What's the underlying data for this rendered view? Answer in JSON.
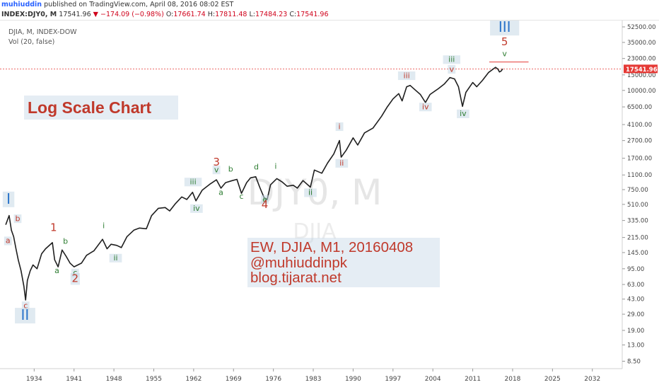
{
  "header": {
    "author": "muhiuddin",
    "published": "published on TradingView.com, April 08, 2016 08:02 EST"
  },
  "ohlc": {
    "symbol": "INDEX:DJY0, M",
    "last": "17541.96",
    "change_arrow": "▼",
    "change": "−174.09 (−0.98%)",
    "o_label": "O:",
    "o": "17661.74",
    "h_label": "H:",
    "h": "17811.48",
    "l_label": "L:",
    "l": "17484.23",
    "c_label": "C:",
    "c": "17541.96"
  },
  "legend": {
    "series": "DJIA, M, INDEX-DOW",
    "volume": "Vol (20, false)"
  },
  "watermark": {
    "main": "DJY0, M",
    "sub": "DJIA"
  },
  "annotations": {
    "title_box": "Log Scale Chart",
    "info_lines": [
      "EW, DJIA, M1, 20160408",
      "@muhiuddinpk",
      "blog.tijarat.net"
    ]
  },
  "colors": {
    "price_line": "#1f1f1f",
    "label_red": "#c0392b",
    "label_green": "#2e7d32",
    "label_blue": "#2a73c9",
    "last_price_bg": "#e53935",
    "hline": "#e53935"
  },
  "chart_data": {
    "type": "line",
    "scale": "log",
    "title": "",
    "xlabel": "",
    "ylabel": "",
    "xlim": [
      1928,
      2037
    ],
    "ylim": [
      7,
      62000
    ],
    "x_ticks": [
      1934,
      1941,
      1948,
      1955,
      1962,
      1969,
      1976,
      1983,
      1990,
      1997,
      2004,
      2011,
      2018,
      2025,
      2032
    ],
    "y_ticks": [
      8.5,
      13,
      19,
      29,
      43,
      63,
      95,
      145,
      215,
      335,
      510,
      750,
      1100,
      1700,
      2700,
      4100,
      6500,
      10000,
      15000,
      23000,
      35000,
      52500
    ],
    "y_tick_labels": [
      "8.50",
      "13.00",
      "19.00",
      "29.00",
      "43.00",
      "63.00",
      "95.00",
      "145.00",
      "215.00",
      "335.00",
      "510.00",
      "750.00",
      "1100.00",
      "1700.00",
      "2700.00",
      "4100.00",
      "6500.00",
      "10000.00",
      "15000.00",
      "23000.00",
      "35000.00",
      "52500.00"
    ],
    "last_price": {
      "value": 17541.96,
      "label": "17541.96"
    },
    "series": [
      {
        "x": [
          1929.0,
          1929.6,
          1930.0,
          1930.4,
          1930.8,
          1931.2,
          1931.7,
          1932.2,
          1932.5,
          1932.8,
          1933.3,
          1933.8,
          1934.5,
          1935.3,
          1936.0,
          1937.2,
          1937.6,
          1938.2,
          1938.9,
          1939.6,
          1940.3,
          1941.0,
          1942.3,
          1943.2,
          1944.5,
          1946.0,
          1946.8,
          1947.5,
          1948.5,
          1949.3,
          1950.3,
          1951.5,
          1952.5,
          1953.7,
          1954.6,
          1955.8,
          1957.0,
          1957.8,
          1958.8,
          1959.9,
          1960.8,
          1961.8,
          1962.4,
          1963.5,
          1964.8,
          1966.0,
          1966.8,
          1967.6,
          1968.8,
          1969.6,
          1970.4,
          1971.3,
          1972.0,
          1972.9,
          1973.6,
          1974.4,
          1974.9,
          1975.5,
          1976.6,
          1977.5,
          1978.4,
          1979.5,
          1980.2,
          1981.2,
          1982.5,
          1983.2,
          1984.5,
          1985.5,
          1986.6,
          1987.6,
          1987.9,
          1988.8,
          1990.0,
          1990.8,
          1992.0,
          1993.5,
          1995.0,
          1996.0,
          1997.0,
          1998.0,
          1998.6,
          1999.4,
          2000.0,
          2001.0,
          2001.8,
          2002.7,
          2003.5,
          2005.0,
          2006.0,
          2007.0,
          2007.8,
          2008.5,
          2009.2,
          2009.8,
          2011.0,
          2011.7,
          2012.7,
          2013.8,
          2015.0,
          2015.4,
          2015.7,
          2016.0,
          2016.25
        ],
        "values": [
          300,
          381,
          260,
          220,
          160,
          120,
          90,
          60,
          42,
          70,
          90,
          105,
          95,
          140,
          160,
          188,
          120,
          100,
          155,
          132,
          110,
          100,
          110,
          135,
          152,
          205,
          160,
          180,
          175,
          165,
          220,
          260,
          275,
          270,
          380,
          460,
          470,
          430,
          520,
          620,
          580,
          700,
          560,
          740,
          860,
          970,
          780,
          900,
          950,
          980,
          680,
          900,
          1020,
          1050,
          800,
          600,
          580,
          850,
          1000,
          920,
          820,
          840,
          780,
          950,
          800,
          1250,
          1150,
          1500,
          1900,
          2700,
          1750,
          2100,
          2900,
          2400,
          3300,
          3750,
          5100,
          6500,
          8000,
          9200,
          7600,
          11000,
          11400,
          10000,
          9000,
          7300,
          9000,
          10500,
          11800,
          14000,
          13500,
          11000,
          6600,
          9500,
          12300,
          11000,
          13000,
          16000,
          18300,
          17500,
          16200,
          16600,
          17542
        ]
      }
    ],
    "wave_labels": [
      {
        "text": "I",
        "x": 1929.5,
        "y": 520,
        "color": "blue",
        "size": "large",
        "box": true
      },
      {
        "text": "b",
        "x": 1931.1,
        "y": 330,
        "color": "red",
        "size": "small",
        "box": true
      },
      {
        "text": "a",
        "x": 1929.4,
        "y": 185,
        "color": "red",
        "size": "small",
        "box": true
      },
      {
        "text": "c",
        "x": 1932.5,
        "y": 34,
        "color": "red",
        "size": "small",
        "box": true
      },
      {
        "text": "II",
        "x": 1932.4,
        "y": 25,
        "color": "blue",
        "size": "large",
        "box": true
      },
      {
        "text": "1",
        "x": 1937.4,
        "y": 255,
        "color": "red",
        "size": "medium",
        "box": false
      },
      {
        "text": "b",
        "x": 1939.5,
        "y": 182,
        "color": "green",
        "size": "small",
        "box": false
      },
      {
        "text": "a",
        "x": 1938.0,
        "y": 85,
        "color": "green",
        "size": "small",
        "box": false
      },
      {
        "text": "c",
        "x": 1941.2,
        "y": 80,
        "color": "green",
        "size": "small",
        "box": true
      },
      {
        "text": "2",
        "x": 1941.2,
        "y": 67,
        "color": "red",
        "size": "medium",
        "box": true
      },
      {
        "text": "i",
        "x": 1946.2,
        "y": 275,
        "color": "green",
        "size": "small",
        "box": false
      },
      {
        "text": "ii",
        "x": 1948.3,
        "y": 118,
        "color": "green",
        "size": "small",
        "box": true
      },
      {
        "text": "iii",
        "x": 1961.9,
        "y": 860,
        "color": "green",
        "size": "small",
        "box": true
      },
      {
        "text": "iv",
        "x": 1962.5,
        "y": 430,
        "color": "green",
        "size": "small",
        "box": true
      },
      {
        "text": "3",
        "x": 1966.0,
        "y": 1400,
        "color": "red",
        "size": "medium",
        "box": false
      },
      {
        "text": "v",
        "x": 1966.0,
        "y": 1180,
        "color": "green",
        "size": "small",
        "box": true
      },
      {
        "text": "a",
        "x": 1966.8,
        "y": 650,
        "color": "green",
        "size": "small",
        "box": false
      },
      {
        "text": "b",
        "x": 1968.5,
        "y": 1200,
        "color": "green",
        "size": "small",
        "box": false
      },
      {
        "text": "c",
        "x": 1970.4,
        "y": 590,
        "color": "green",
        "size": "small",
        "box": false
      },
      {
        "text": "d",
        "x": 1973.0,
        "y": 1270,
        "color": "green",
        "size": "small",
        "box": false
      },
      {
        "text": "e",
        "x": 1974.5,
        "y": 545,
        "color": "green",
        "size": "small",
        "box": true
      },
      {
        "text": "4",
        "x": 1974.5,
        "y": 462,
        "color": "red",
        "size": "medium",
        "box": false
      },
      {
        "text": "i",
        "x": 1976.4,
        "y": 1290,
        "color": "green",
        "size": "small",
        "box": false
      },
      {
        "text": "ii",
        "x": 1982.5,
        "y": 650,
        "color": "green",
        "size": "small",
        "box": true
      },
      {
        "text": "i",
        "x": 1987.6,
        "y": 3650,
        "color": "red",
        "size": "small",
        "box": true
      },
      {
        "text": "ii",
        "x": 1988.0,
        "y": 1400,
        "color": "red",
        "size": "small",
        "box": true
      },
      {
        "text": "iii",
        "x": 1999.4,
        "y": 13800,
        "color": "red",
        "size": "small",
        "box": true
      },
      {
        "text": "iv",
        "x": 2002.7,
        "y": 6100,
        "color": "red",
        "size": "small",
        "box": true
      },
      {
        "text": "iii",
        "x": 2007.3,
        "y": 21000,
        "color": "green",
        "size": "small",
        "box": true
      },
      {
        "text": "v",
        "x": 2007.3,
        "y": 16300,
        "color": "red",
        "size": "small",
        "box": true
      },
      {
        "text": "iv",
        "x": 2009.3,
        "y": 5100,
        "color": "green",
        "size": "small",
        "box": true
      },
      {
        "text": "III",
        "x": 2016.6,
        "y": 46000,
        "color": "blue",
        "size": "large",
        "box": true
      },
      {
        "text": "5",
        "x": 2016.6,
        "y": 32500,
        "color": "red",
        "size": "medium",
        "box": false
      },
      {
        "text": "v",
        "x": 2016.6,
        "y": 24500,
        "color": "green",
        "size": "small",
        "box": false
      }
    ],
    "hline": {
      "value": 21000,
      "x_from": 2013.9,
      "x_to": 2020.8
    },
    "grid": false
  }
}
